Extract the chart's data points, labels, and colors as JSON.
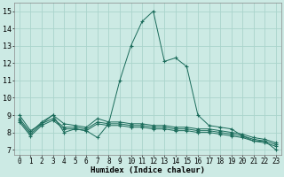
{
  "title": "",
  "xlabel": "Humidex (Indice chaleur)",
  "ylabel": "",
  "bg_color": "#cceae4",
  "grid_color": "#aad4cc",
  "line_color": "#1a6b5a",
  "xlim": [
    -0.5,
    23.5
  ],
  "ylim": [
    6.7,
    15.5
  ],
  "yticks": [
    7,
    8,
    9,
    10,
    11,
    12,
    13,
    14,
    15
  ],
  "xticks": [
    0,
    1,
    2,
    3,
    4,
    5,
    6,
    7,
    8,
    9,
    10,
    11,
    12,
    13,
    14,
    15,
    16,
    17,
    18,
    19,
    20,
    21,
    22,
    23
  ],
  "lines": [
    {
      "x": [
        0,
        1,
        2,
        3,
        4,
        5,
        6,
        7,
        8,
        9,
        10,
        11,
        12,
        13,
        14,
        15,
        16,
        17,
        18,
        19,
        20,
        21,
        22,
        23
      ],
      "y": [
        9.0,
        8.1,
        8.5,
        9.0,
        8.0,
        8.2,
        8.1,
        7.7,
        8.5,
        11.0,
        13.0,
        14.4,
        15.0,
        12.1,
        12.3,
        11.8,
        9.0,
        8.4,
        8.3,
        8.2,
        7.8,
        7.5,
        7.5,
        7.0
      ]
    },
    {
      "x": [
        0,
        1,
        2,
        3,
        4,
        5,
        6,
        7,
        8,
        9,
        10,
        11,
        12,
        13,
        14,
        15,
        16,
        17,
        18,
        19,
        20,
        21,
        22,
        23
      ],
      "y": [
        8.8,
        8.0,
        8.6,
        9.0,
        8.5,
        8.4,
        8.3,
        8.8,
        8.6,
        8.6,
        8.5,
        8.5,
        8.4,
        8.4,
        8.3,
        8.3,
        8.2,
        8.2,
        8.1,
        8.0,
        7.9,
        7.7,
        7.6,
        7.4
      ]
    },
    {
      "x": [
        0,
        1,
        2,
        3,
        4,
        5,
        6,
        7,
        8,
        9,
        10,
        11,
        12,
        13,
        14,
        15,
        16,
        17,
        18,
        19,
        20,
        21,
        22,
        23
      ],
      "y": [
        8.7,
        7.9,
        8.5,
        8.8,
        8.3,
        8.3,
        8.2,
        8.6,
        8.5,
        8.5,
        8.4,
        8.4,
        8.3,
        8.3,
        8.2,
        8.2,
        8.1,
        8.1,
        8.0,
        7.9,
        7.8,
        7.6,
        7.5,
        7.3
      ]
    },
    {
      "x": [
        0,
        1,
        2,
        3,
        4,
        5,
        6,
        7,
        8,
        9,
        10,
        11,
        12,
        13,
        14,
        15,
        16,
        17,
        18,
        19,
        20,
        21,
        22,
        23
      ],
      "y": [
        8.6,
        7.8,
        8.4,
        8.7,
        8.2,
        8.2,
        8.1,
        8.5,
        8.4,
        8.4,
        8.3,
        8.3,
        8.2,
        8.2,
        8.1,
        8.1,
        8.0,
        8.0,
        7.9,
        7.8,
        7.7,
        7.5,
        7.4,
        7.2
      ]
    }
  ]
}
